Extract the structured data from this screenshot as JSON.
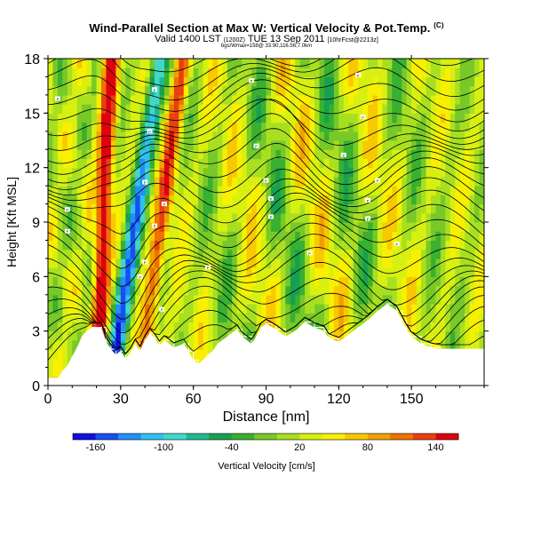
{
  "header": {
    "title": "Wind-Parallel Section at Max W: Vertical Velocity & Pot.Temp.",
    "title_tag": "(C)",
    "valid_main": "Valid 1400 LST",
    "valid_paren": "(1200Z)",
    "valid_date": "TUE 13 Sep 2011",
    "valid_fcst": "[10hrFcst@2213z]",
    "location_note": "bgs/Wmax=158@ 33.90,116.56,7.0km"
  },
  "colorbar": {
    "label": "Vertical Velocity [cm/s]",
    "tick_labels": [
      "-160",
      "-100",
      "-40",
      "20",
      "80",
      "140"
    ],
    "colors": [
      "#1010e0",
      "#1850f0",
      "#2090f8",
      "#30c0f0",
      "#40d8c8",
      "#20b890",
      "#18a050",
      "#38b030",
      "#78c828",
      "#a8e020",
      "#d8f010",
      "#f8f000",
      "#f8c800",
      "#f0a000",
      "#f07000",
      "#e84010",
      "#e00010"
    ]
  },
  "chart_data": {
    "type": "heatmap",
    "title": "Wind-Parallel Section at Max W: Vertical Velocity & Pot.Temp.",
    "xlabel": "Distance [nm]",
    "ylabel": "Height [Kft MSL]",
    "xlim": [
      0,
      180
    ],
    "ylim": [
      0,
      18
    ],
    "x_ticks": [
      0,
      30,
      60,
      90,
      120,
      150
    ],
    "y_ticks": [
      0,
      3,
      6,
      9,
      12,
      15,
      18
    ],
    "colorbar_range": [
      -180,
      160
    ],
    "colorbar_step": 20,
    "updraft_bands": [
      {
        "x_at_top": 26,
        "x_at_bottom": 20,
        "peak_cm_s": 150
      },
      {
        "x_at_top": 56,
        "x_at_bottom": 38,
        "peak_cm_s": 110
      }
    ],
    "downdraft_bands": [
      {
        "x_at_top": 46,
        "x_at_bottom": 26,
        "min_cm_s": -160
      }
    ],
    "terrain_kft": [
      [
        0,
        0.4
      ],
      [
        4,
        0.4
      ],
      [
        6,
        0.8
      ],
      [
        8,
        1.1
      ],
      [
        10,
        1.6
      ],
      [
        12,
        2.1
      ],
      [
        14,
        2.7
      ],
      [
        16,
        3.0
      ],
      [
        18,
        3.2
      ],
      [
        22,
        3.2
      ],
      [
        24,
        2.4
      ],
      [
        26,
        2.0
      ],
      [
        28,
        1.7
      ],
      [
        30,
        1.9
      ],
      [
        32,
        1.5
      ],
      [
        34,
        1.8
      ],
      [
        36,
        2.3
      ],
      [
        38,
        1.9
      ],
      [
        40,
        2.5
      ],
      [
        42,
        2.9
      ],
      [
        44,
        2.6
      ],
      [
        46,
        2.2
      ],
      [
        48,
        2.5
      ],
      [
        52,
        2.1
      ],
      [
        56,
        2.3
      ],
      [
        58,
        1.9
      ],
      [
        60,
        1.4
      ],
      [
        62,
        1.2
      ],
      [
        64,
        1.4
      ],
      [
        66,
        1.7
      ],
      [
        68,
        1.9
      ],
      [
        70,
        2.3
      ],
      [
        72,
        2.5
      ],
      [
        76,
        2.9
      ],
      [
        78,
        3.1
      ],
      [
        80,
        2.7
      ],
      [
        84,
        2.3
      ],
      [
        86,
        2.7
      ],
      [
        88,
        3.2
      ],
      [
        90,
        3.4
      ],
      [
        94,
        3.1
      ],
      [
        98,
        2.7
      ],
      [
        102,
        3.0
      ],
      [
        106,
        3.5
      ],
      [
        110,
        3.2
      ],
      [
        114,
        3.0
      ],
      [
        116,
        2.6
      ],
      [
        120,
        2.4
      ],
      [
        124,
        2.8
      ],
      [
        128,
        3.2
      ],
      [
        132,
        3.6
      ],
      [
        136,
        4.1
      ],
      [
        140,
        4.5
      ],
      [
        144,
        4.1
      ],
      [
        146,
        3.6
      ],
      [
        148,
        3.1
      ],
      [
        150,
        2.7
      ],
      [
        154,
        2.3
      ],
      [
        158,
        2.1
      ],
      [
        162,
        2.0
      ],
      [
        180,
        2.0
      ]
    ],
    "isentrope_labels": [
      {
        "x": 4,
        "y": 15.8,
        "text": "P"
      },
      {
        "x": 8,
        "y": 9.7,
        "text": "P"
      },
      {
        "x": 8,
        "y": 8.5,
        "text": "P"
      },
      {
        "x": 40,
        "y": 6.8,
        "text": "P"
      },
      {
        "x": 38,
        "y": 6.0,
        "text": "P"
      },
      {
        "x": 44,
        "y": 16.3,
        "text": "P"
      },
      {
        "x": 42,
        "y": 14.0,
        "text": "P"
      },
      {
        "x": 40,
        "y": 11.2,
        "text": "P"
      },
      {
        "x": 48,
        "y": 10.0,
        "text": "P"
      },
      {
        "x": 44,
        "y": 8.8,
        "text": "P"
      },
      {
        "x": 47,
        "y": 4.2,
        "text": "P"
      },
      {
        "x": 66,
        "y": 6.5,
        "text": "P"
      },
      {
        "x": 84,
        "y": 16.8,
        "text": "P"
      },
      {
        "x": 86,
        "y": 13.2,
        "text": "P"
      },
      {
        "x": 90,
        "y": 11.3,
        "text": "P"
      },
      {
        "x": 92,
        "y": 10.3,
        "text": "P"
      },
      {
        "x": 92,
        "y": 9.3,
        "text": "P"
      },
      {
        "x": 108,
        "y": 7.3,
        "text": "P"
      },
      {
        "x": 122,
        "y": 12.7,
        "text": "P"
      },
      {
        "x": 128,
        "y": 17.1,
        "text": "P"
      },
      {
        "x": 130,
        "y": 14.8,
        "text": "P"
      },
      {
        "x": 136,
        "y": 11.3,
        "text": "P"
      },
      {
        "x": 132,
        "y": 10.2,
        "text": "P"
      },
      {
        "x": 132,
        "y": 9.2,
        "text": "P"
      },
      {
        "x": 144,
        "y": 7.8,
        "text": "P"
      }
    ]
  }
}
